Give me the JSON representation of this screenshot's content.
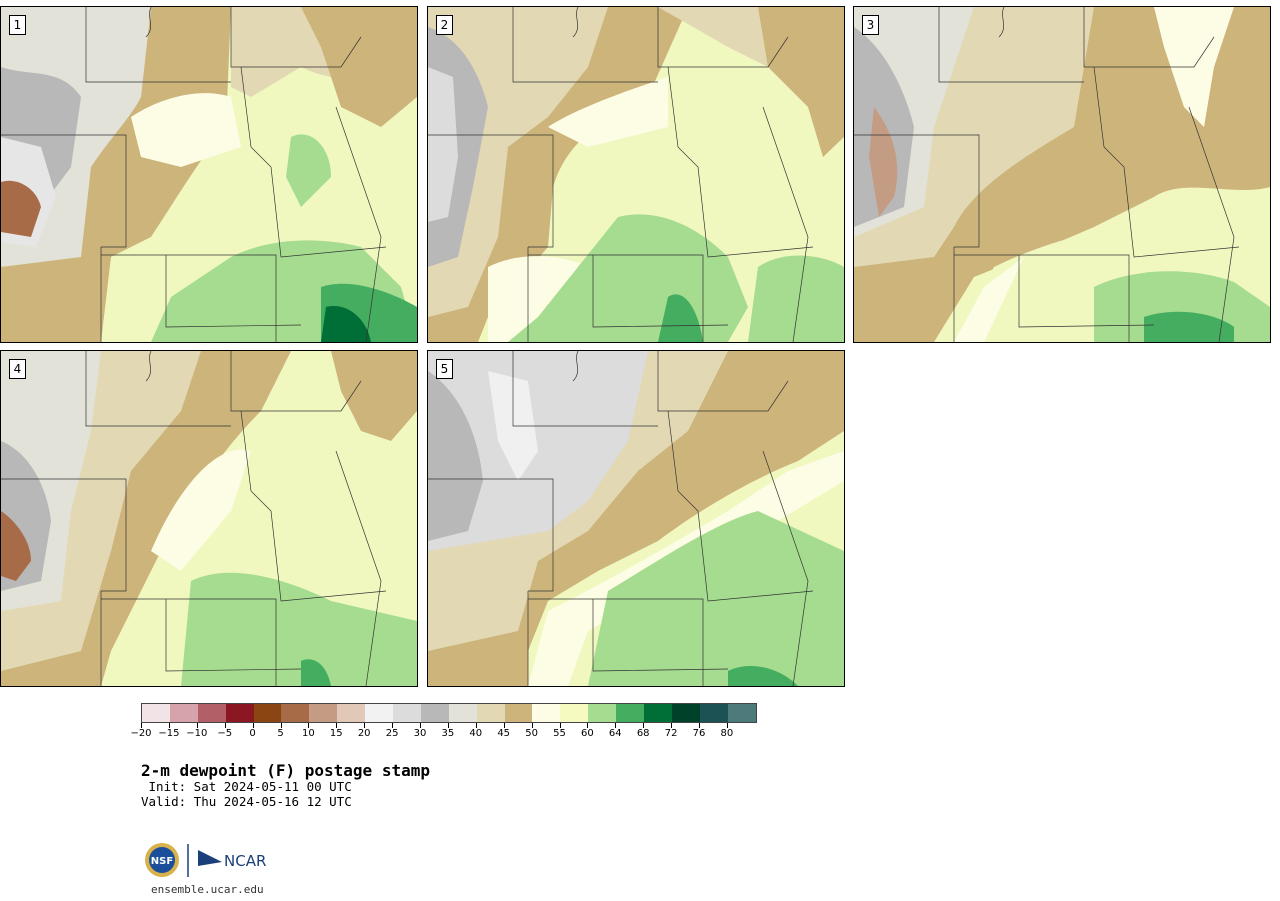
{
  "panels": [
    {
      "label": "1"
    },
    {
      "label": "2"
    },
    {
      "label": "3"
    },
    {
      "label": "4"
    },
    {
      "label": "5"
    }
  ],
  "colorbar": {
    "colors": [
      "#f2e4e6",
      "#d6a3ab",
      "#b35f67",
      "#8a1722",
      "#8a4512",
      "#a86b47",
      "#c49b83",
      "#e2c8b6",
      "#f2f2f2",
      "#dcdcdc",
      "#b8b8b8",
      "#e2e2d8",
      "#e2d9b4",
      "#cdb47b",
      "#fdfde6",
      "#f5fbc0",
      "#a5dc8f",
      "#45ad60",
      "#006e37",
      "#00412a",
      "#1c5253",
      "#4d7b7c"
    ],
    "tick_labels": [
      "−20",
      "−15",
      "−10",
      "−5",
      "0",
      "5",
      "10",
      "15",
      "20",
      "25",
      "30",
      "35",
      "40",
      "45",
      "50",
      "55",
      "60",
      "64",
      "68",
      "72",
      "76",
      "80"
    ]
  },
  "title": "2-m dewpoint (F) postage stamp",
  "init_line": " Init: Sat 2024-05-11 00 UTC",
  "valid_line": "Valid: Thu 2024-05-16 12 UTC",
  "logos": {
    "nsf": "NSF",
    "ncar": "NCAR"
  },
  "website": "ensemble.ucar.edu"
}
